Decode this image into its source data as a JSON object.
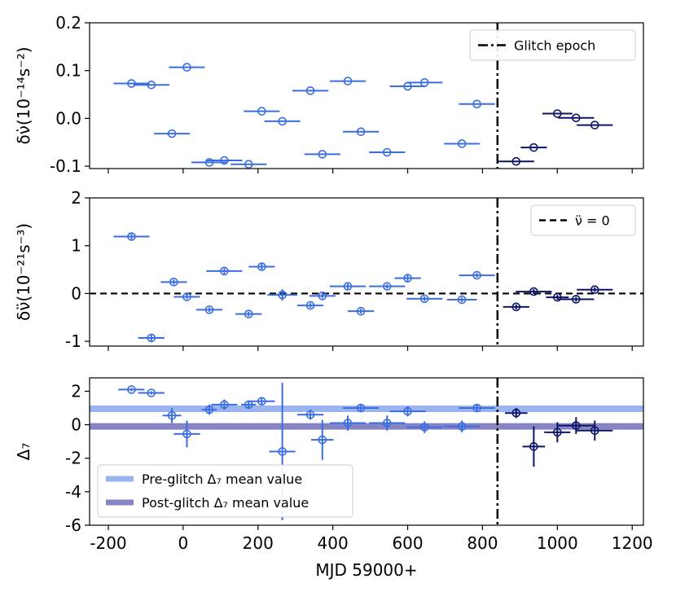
{
  "chart_data": {
    "type": "scatter",
    "x_axis": {
      "label": "MJD 59000+",
      "xlim": [
        -250,
        1230
      ],
      "ticks": [
        -200,
        0,
        200,
        400,
        600,
        800,
        1000,
        1200
      ],
      "tick_labels": [
        "-200",
        "0",
        "200",
        "400",
        "600",
        "800",
        "1000",
        "1200"
      ]
    },
    "glitch_epoch": 840,
    "panels": [
      {
        "id": "nudot",
        "ylabel": "δν̇(10⁻¹⁴s⁻²)",
        "ylim": [
          -0.105,
          0.2
        ],
        "yticks": [
          -0.1,
          0.0,
          0.1,
          0.2
        ],
        "ytick_labels": [
          "-0.1",
          "0.0",
          "0.1",
          "0.2"
        ],
        "legend": {
          "position": "top-right",
          "entries": [
            {
              "label": "Glitch epoch",
              "style": "dashdot",
              "color": "#000000"
            }
          ]
        },
        "series": [
          {
            "name": "pre-glitch",
            "color": "#3a6ee0",
            "points": [
              {
                "x": -138,
                "y": 0.073,
                "xerr": 48
              },
              {
                "x": -85,
                "y": 0.07,
                "xerr": 48
              },
              {
                "x": -30,
                "y": -0.032,
                "xerr": 48
              },
              {
                "x": 10,
                "y": 0.107,
                "xerr": 48
              },
              {
                "x": 70,
                "y": -0.092,
                "xerr": 48
              },
              {
                "x": 110,
                "y": -0.088,
                "xerr": 48
              },
              {
                "x": 175,
                "y": -0.096,
                "xerr": 48
              },
              {
                "x": 210,
                "y": 0.015,
                "xerr": 48
              },
              {
                "x": 265,
                "y": -0.006,
                "xerr": 48
              },
              {
                "x": 340,
                "y": 0.058,
                "xerr": 48
              },
              {
                "x": 372,
                "y": -0.075,
                "xerr": 48
              },
              {
                "x": 440,
                "y": 0.078,
                "xerr": 48
              },
              {
                "x": 475,
                "y": -0.028,
                "xerr": 48
              },
              {
                "x": 545,
                "y": -0.071,
                "xerr": 48
              },
              {
                "x": 600,
                "y": 0.067,
                "xerr": 48
              },
              {
                "x": 645,
                "y": 0.075,
                "xerr": 48
              },
              {
                "x": 745,
                "y": -0.053,
                "xerr": 48
              },
              {
                "x": 785,
                "y": 0.03,
                "xerr": 48
              }
            ]
          },
          {
            "name": "post-glitch",
            "color": "#0c1466",
            "points": [
              {
                "x": 890,
                "y": -0.09,
                "xerr": 48
              },
              {
                "x": 937,
                "y": -0.061,
                "xerr": 35
              },
              {
                "x": 1000,
                "y": 0.01,
                "xerr": 40
              },
              {
                "x": 1050,
                "y": 0.001,
                "xerr": 48
              },
              {
                "x": 1100,
                "y": -0.014,
                "xerr": 48
              }
            ]
          }
        ]
      },
      {
        "id": "nuddot",
        "ylabel": "δν̈(10⁻²¹s⁻³)",
        "ylim": [
          -1.1,
          2
        ],
        "yticks": [
          -1,
          0,
          1,
          2
        ],
        "ytick_labels": [
          "-1",
          "0",
          "1",
          "2"
        ],
        "zero_line": 0,
        "legend": {
          "position": "top-right",
          "entries": [
            {
              "label": "ν̈ = 0",
              "style": "dashed",
              "color": "#000000"
            }
          ]
        },
        "series": [
          {
            "name": "pre-glitch",
            "color": "#3a6ee0",
            "points": [
              {
                "x": -138,
                "y": 1.19,
                "xerr": 48,
                "yerr": 0.06
              },
              {
                "x": -85,
                "y": -0.93,
                "xerr": 35,
                "yerr": 0.08
              },
              {
                "x": -25,
                "y": 0.24,
                "xerr": 35,
                "yerr": 0.05
              },
              {
                "x": 10,
                "y": -0.07,
                "xerr": 35,
                "yerr": 0.05
              },
              {
                "x": 70,
                "y": -0.34,
                "xerr": 35,
                "yerr": 0.05
              },
              {
                "x": 110,
                "y": 0.47,
                "xerr": 48,
                "yerr": 0.06
              },
              {
                "x": 175,
                "y": -0.43,
                "xerr": 35,
                "yerr": 0.05
              },
              {
                "x": 210,
                "y": 0.56,
                "xerr": 35,
                "yerr": 0.06
              },
              {
                "x": 265,
                "y": -0.03,
                "xerr": 40,
                "yerr": 0.12
              },
              {
                "x": 340,
                "y": -0.25,
                "xerr": 35,
                "yerr": 0.05
              },
              {
                "x": 372,
                "y": -0.05,
                "xerr": 35,
                "yerr": 0.05
              },
              {
                "x": 440,
                "y": 0.15,
                "xerr": 48,
                "yerr": 0.06
              },
              {
                "x": 475,
                "y": -0.37,
                "xerr": 35,
                "yerr": 0.05
              },
              {
                "x": 545,
                "y": 0.15,
                "xerr": 48,
                "yerr": 0.05
              },
              {
                "x": 600,
                "y": 0.32,
                "xerr": 35,
                "yerr": 0.09
              },
              {
                "x": 645,
                "y": -0.11,
                "xerr": 48,
                "yerr": 0.05
              },
              {
                "x": 745,
                "y": -0.13,
                "xerr": 40,
                "yerr": 0.05
              },
              {
                "x": 785,
                "y": 0.38,
                "xerr": 48,
                "yerr": 0.05
              }
            ]
          },
          {
            "name": "post-glitch",
            "color": "#0c1466",
            "points": [
              {
                "x": 890,
                "y": -0.28,
                "xerr": 35,
                "yerr": 0.05
              },
              {
                "x": 937,
                "y": 0.04,
                "xerr": 48,
                "yerr": 0.05
              },
              {
                "x": 1000,
                "y": -0.08,
                "xerr": 30,
                "yerr": 0.05
              },
              {
                "x": 1050,
                "y": -0.12,
                "xerr": 48,
                "yerr": 0.05
              },
              {
                "x": 1100,
                "y": 0.08,
                "xerr": 48,
                "yerr": 0.05
              }
            ]
          }
        ]
      },
      {
        "id": "delta7",
        "ylabel": "Δ₇",
        "ylim": [
          -6,
          2.8
        ],
        "yticks": [
          -6,
          -4,
          -2,
          0,
          2
        ],
        "ytick_labels": [
          "-6",
          "-4",
          "-2",
          "0",
          "2"
        ],
        "hlines": [
          {
            "label": "Pre-glitch Δ₇ mean value",
            "y": 0.95,
            "color": "#9bb3ef"
          },
          {
            "label": "Post-glitch Δ₇ mean value",
            "y": -0.1,
            "color": "#8784c6"
          }
        ],
        "legend": {
          "position": "bottom-left"
        },
        "series": [
          {
            "name": "pre-glitch",
            "color": "#3a6ee0",
            "points": [
              {
                "x": -138,
                "y": 2.1,
                "xerr": 35,
                "yerr": 0.1
              },
              {
                "x": -85,
                "y": 1.9,
                "xerr": 35,
                "yerr": 0.1
              },
              {
                "x": -30,
                "y": 0.55,
                "xerr": 25,
                "yerr": 0.45
              },
              {
                "x": 10,
                "y": -0.55,
                "xerr": 35,
                "yerr": 0.8
              },
              {
                "x": 70,
                "y": 0.9,
                "xerr": 20,
                "yerr": 0.3
              },
              {
                "x": 110,
                "y": 1.2,
                "xerr": 35,
                "yerr": 0.3
              },
              {
                "x": 175,
                "y": 1.2,
                "xerr": 20,
                "yerr": 0.2
              },
              {
                "x": 210,
                "y": 1.4,
                "xerr": 35,
                "yerr": 0.2
              },
              {
                "x": 265,
                "y": -1.6,
                "xerr": 35,
                "yerr": 4.1
              },
              {
                "x": 340,
                "y": 0.6,
                "xerr": 35,
                "yerr": 0.3
              },
              {
                "x": 372,
                "y": -0.9,
                "xerr": 30,
                "yerr": 1.2
              },
              {
                "x": 440,
                "y": 0.1,
                "xerr": 48,
                "yerr": 0.45
              },
              {
                "x": 475,
                "y": 1.0,
                "xerr": 48,
                "yerr": 0.2
              },
              {
                "x": 545,
                "y": 0.1,
                "xerr": 48,
                "yerr": 0.45
              },
              {
                "x": 600,
                "y": 0.8,
                "xerr": 48,
                "yerr": 0.3
              },
              {
                "x": 645,
                "y": -0.15,
                "xerr": 48,
                "yerr": 0.35
              },
              {
                "x": 745,
                "y": -0.1,
                "xerr": 48,
                "yerr": 0.35
              },
              {
                "x": 785,
                "y": 1.0,
                "xerr": 48,
                "yerr": 0.2
              }
            ]
          },
          {
            "name": "post-glitch",
            "color": "#0c1466",
            "points": [
              {
                "x": 890,
                "y": 0.7,
                "xerr": 30,
                "yerr": 0.3
              },
              {
                "x": 937,
                "y": -1.3,
                "xerr": 30,
                "yerr": 1.2
              },
              {
                "x": 1000,
                "y": -0.45,
                "xerr": 35,
                "yerr": 0.6
              },
              {
                "x": 1050,
                "y": -0.05,
                "xerr": 48,
                "yerr": 0.5
              },
              {
                "x": 1100,
                "y": -0.35,
                "xerr": 48,
                "yerr": 0.6
              }
            ]
          }
        ]
      }
    ]
  }
}
